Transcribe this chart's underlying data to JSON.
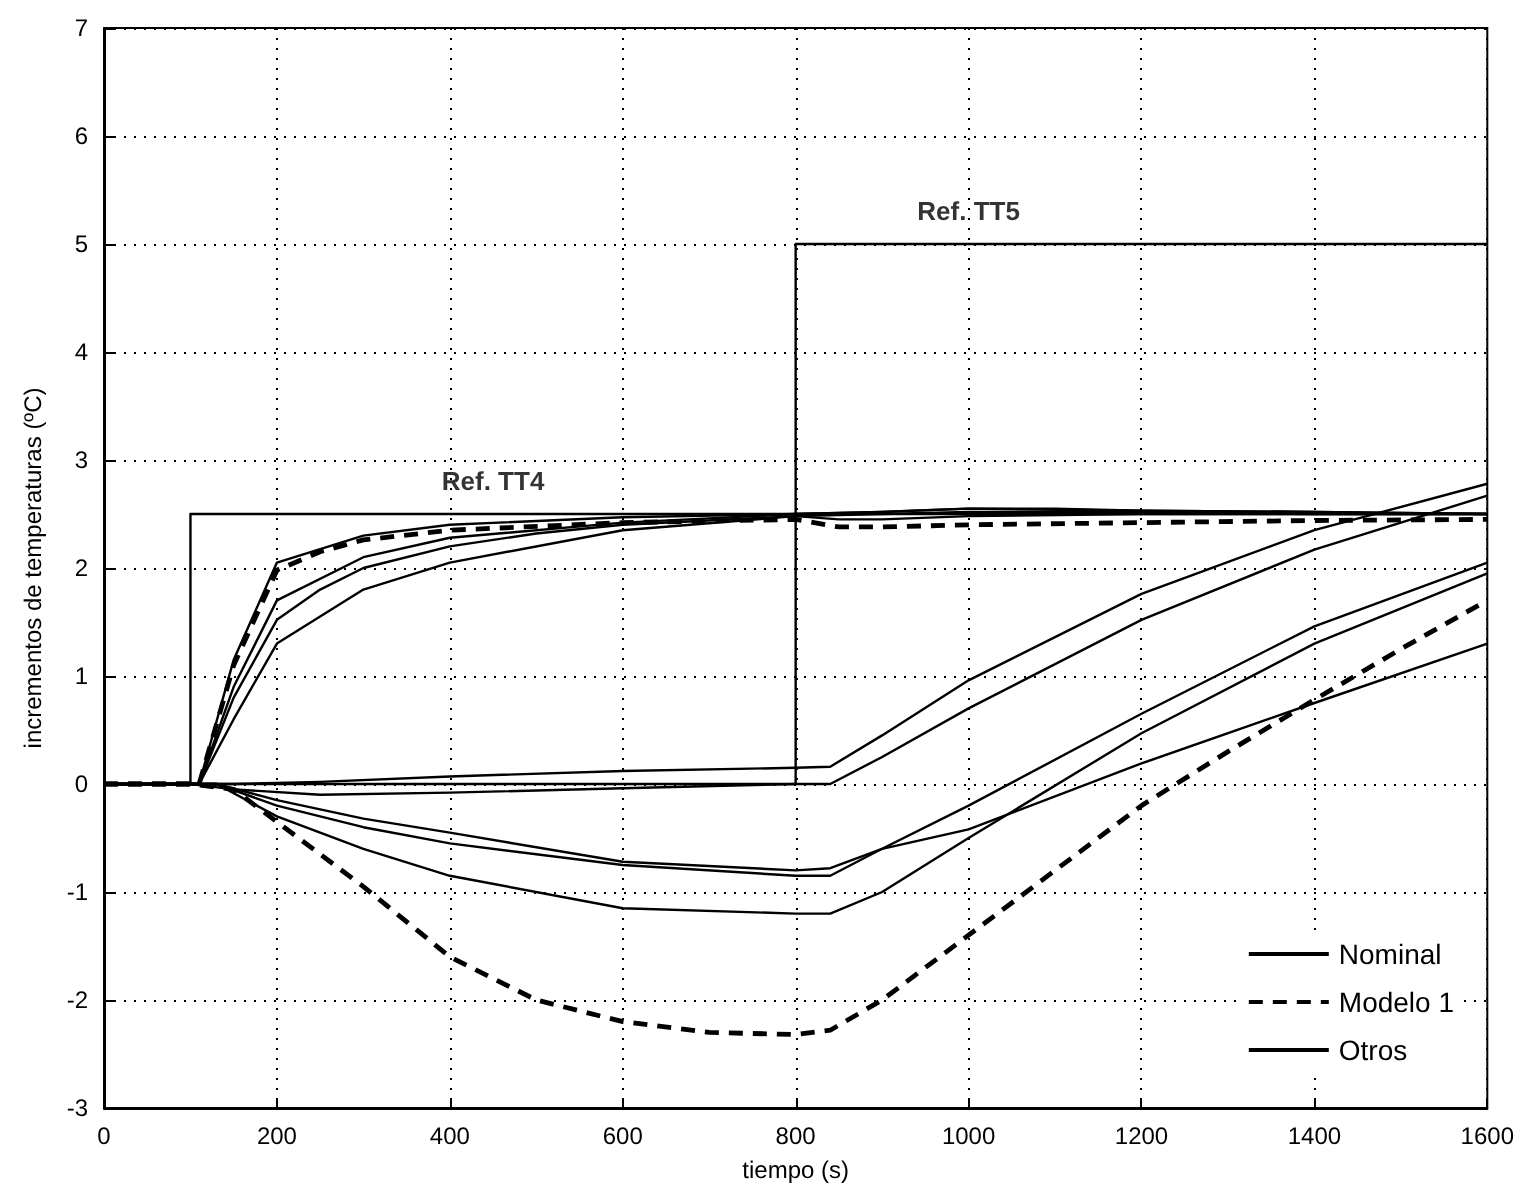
{
  "chart_data": {
    "type": "line",
    "xlabel": "tiempo (s)",
    "ylabel": "incrementos de temperaturas (ºC)",
    "xlim": [
      0,
      1600
    ],
    "xticks": [
      0,
      200,
      400,
      600,
      800,
      1000,
      1200,
      1400,
      1600
    ],
    "ylim": [
      -3,
      7
    ],
    "yticks": [
      -3,
      -2,
      -1,
      0,
      1,
      2,
      3,
      4,
      5,
      6,
      7
    ],
    "grid": true,
    "legend": "bottom right",
    "marker": "none",
    "annotations": [
      {
        "text": "Ref. TT4",
        "x": 450,
        "y": 2.5
      },
      {
        "text": "Ref. TT5",
        "x": 1000,
        "y": 5
      }
    ],
    "series": [
      {
        "color": "#000000",
        "line_style": "solid",
        "x": [
          0,
          100,
          100,
          1600
        ],
        "values": [
          0,
          0,
          2.5,
          2.5
        ]
      },
      {
        "color": "#000000",
        "line_style": "solid",
        "x": [
          0,
          800,
          800,
          1600
        ],
        "values": [
          0,
          0,
          5,
          5
        ]
      },
      {
        "name": "Nominal",
        "color": "#000000",
        "line_style": "solid",
        "x": [
          0,
          100,
          110,
          150,
          200,
          250,
          300,
          400,
          500,
          600,
          800,
          850,
          900,
          1000,
          1200,
          1400,
          1600
        ],
        "values": [
          0,
          0,
          0,
          0.8,
          1.52,
          1.8,
          2.0,
          2.2,
          2.32,
          2.4,
          2.48,
          2.45,
          2.45,
          2.48,
          2.5,
          2.5,
          2.5
        ]
      },
      {
        "color": "#000000",
        "line_style": "solid",
        "x": [
          0,
          100,
          150,
          250,
          400,
          600,
          800,
          840,
          900,
          1000,
          1200,
          1400,
          1600
        ],
        "values": [
          0,
          0,
          -0.05,
          -0.1,
          -0.08,
          -0.04,
          0,
          0,
          0.25,
          0.7,
          1.52,
          2.17,
          2.67
        ]
      },
      {
        "name": "Modelo 1",
        "color": "#000000",
        "line_style": "dashed",
        "x": [
          0,
          100,
          110,
          150,
          200,
          250,
          300,
          400,
          600,
          800,
          850,
          900,
          1000,
          1200,
          1400,
          1600
        ],
        "values": [
          0,
          0,
          0,
          1.1,
          1.98,
          2.15,
          2.26,
          2.35,
          2.42,
          2.45,
          2.38,
          2.38,
          2.4,
          2.42,
          2.44,
          2.45
        ]
      },
      {
        "color": "#000000",
        "line_style": "dashed",
        "x": [
          0,
          100,
          150,
          200,
          300,
          400,
          500,
          600,
          700,
          800,
          840,
          900,
          1000,
          1100,
          1200,
          1300,
          1400,
          1500,
          1600
        ],
        "values": [
          0,
          0,
          -0.05,
          -0.35,
          -0.95,
          -1.6,
          -2.0,
          -2.2,
          -2.3,
          -2.32,
          -2.28,
          -2.0,
          -1.4,
          -0.8,
          -0.2,
          0.3,
          0.78,
          1.25,
          1.7
        ]
      },
      {
        "name": "Otros",
        "color": "#000000",
        "line_style": "solid",
        "x": [
          0,
          100,
          110,
          150,
          200,
          300,
          400,
          600,
          800,
          900,
          1000,
          1100,
          1200,
          1400,
          1600
        ],
        "values": [
          0,
          0,
          0,
          1.15,
          2.05,
          2.3,
          2.4,
          2.47,
          2.5,
          2.52,
          2.55,
          2.55,
          2.53,
          2.52,
          2.5
        ]
      },
      {
        "color": "#000000",
        "line_style": "solid",
        "x": [
          0,
          100,
          110,
          150,
          200,
          300,
          400,
          600,
          800,
          900,
          1000,
          1200,
          1400,
          1600
        ],
        "values": [
          0,
          0,
          0,
          0.9,
          1.7,
          2.1,
          2.28,
          2.42,
          2.5,
          2.52,
          2.55,
          2.53,
          2.52,
          2.5
        ]
      },
      {
        "color": "#000000",
        "line_style": "solid",
        "x": [
          0,
          100,
          110,
          150,
          200,
          300,
          400,
          600,
          800,
          900,
          1000,
          1200,
          1400,
          1600
        ],
        "values": [
          0,
          0,
          0,
          0.6,
          1.3,
          1.8,
          2.05,
          2.35,
          2.48,
          2.5,
          2.52,
          2.52,
          2.5,
          2.5
        ]
      },
      {
        "color": "#000000",
        "line_style": "solid",
        "x": [
          0,
          100,
          150,
          250,
          400,
          600,
          800,
          840,
          900,
          1000,
          1200,
          1400,
          1600
        ],
        "values": [
          0,
          0,
          0,
          0.02,
          0.07,
          0.12,
          0.15,
          0.16,
          0.45,
          0.96,
          1.76,
          2.35,
          2.78
        ]
      },
      {
        "color": "#000000",
        "line_style": "solid",
        "x": [
          0,
          100,
          130,
          200,
          300,
          400,
          600,
          800,
          840,
          900,
          1000,
          1200,
          1400,
          1600
        ],
        "values": [
          0,
          0,
          0,
          -0.15,
          -0.32,
          -0.45,
          -0.72,
          -0.8,
          -0.78,
          -0.6,
          -0.42,
          0.19,
          0.75,
          1.3
        ]
      },
      {
        "color": "#000000",
        "line_style": "solid",
        "x": [
          0,
          100,
          130,
          200,
          300,
          400,
          600,
          800,
          840,
          900,
          1000,
          1200,
          1400,
          1600
        ],
        "values": [
          0,
          0,
          0,
          -0.2,
          -0.4,
          -0.55,
          -0.75,
          -0.85,
          -0.85,
          -0.6,
          -0.2,
          0.65,
          1.46,
          2.05
        ]
      },
      {
        "color": "#000000",
        "line_style": "solid",
        "x": [
          0,
          100,
          130,
          200,
          300,
          400,
          600,
          800,
          840,
          900,
          1000,
          1200,
          1400,
          1600
        ],
        "values": [
          0,
          0,
          0,
          -0.3,
          -0.6,
          -0.85,
          -1.15,
          -1.2,
          -1.2,
          -1.0,
          -0.5,
          0.47,
          1.3,
          1.95
        ]
      }
    ]
  }
}
